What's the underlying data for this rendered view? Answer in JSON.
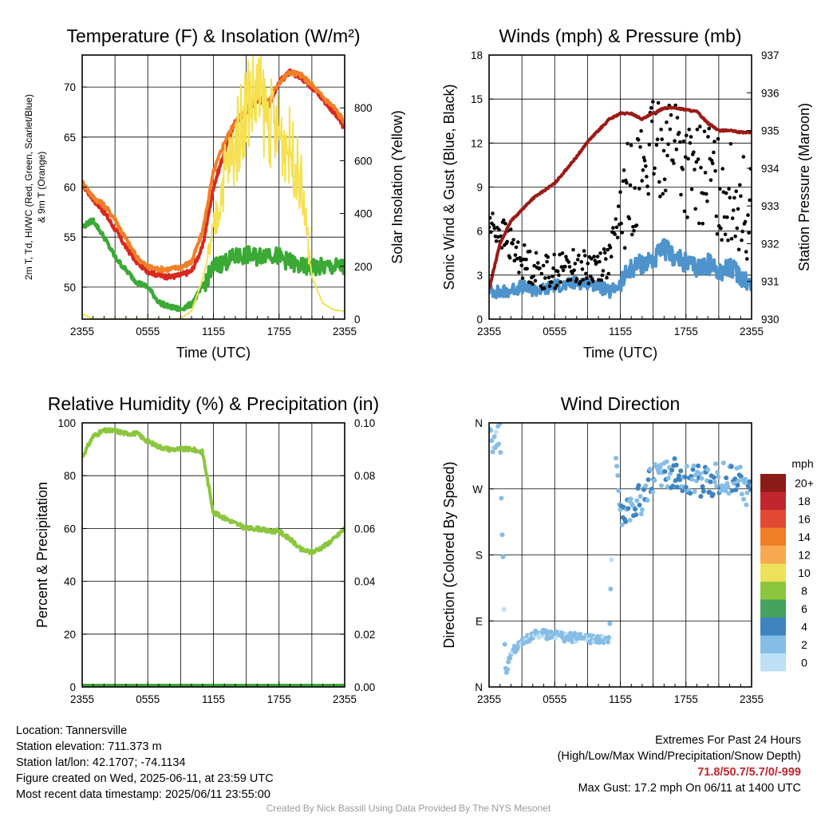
{
  "chart_data": [
    {
      "type": "line",
      "title": "Temperature (F) & Insolation (W/m²)",
      "xlabel": "Time (UTC)",
      "ylabel": "2m T, Td, HI/WC (Red, Green, Scarlet/Blue) & 9m T (Orange)",
      "ylabel2": "Solar Insolation (Yellow)",
      "x_ticks": [
        "2355",
        "0555",
        "1155",
        "1755",
        "2355"
      ],
      "y_ticks": [
        50,
        55,
        60,
        65,
        70
      ],
      "ylim": [
        46.8,
        73.2
      ],
      "y2_ticks": [
        0,
        200,
        400,
        600,
        800
      ],
      "y2lim": [
        0,
        1000
      ],
      "x_hours": [
        0,
        1,
        2,
        3,
        4,
        5,
        6,
        7,
        8,
        9,
        10,
        11,
        12,
        13,
        14,
        15,
        16,
        17,
        18,
        19,
        20,
        21,
        22,
        23,
        24
      ],
      "series": [
        {
          "name": "2m T",
          "axis": "left",
          "color": "#d9281e",
          "values": [
            60.3,
            58.8,
            57.5,
            55.8,
            54.0,
            52.5,
            51.6,
            51.2,
            51.0,
            51.2,
            51.6,
            54.0,
            60.0,
            63.5,
            66.5,
            67.5,
            68.8,
            68.0,
            70.5,
            71.5,
            71.0,
            70.0,
            68.8,
            67.5,
            65.9
          ]
        },
        {
          "name": "9m T",
          "axis": "left",
          "color": "#f07f27",
          "values": [
            60.5,
            59.0,
            58.2,
            56.8,
            54.8,
            53.0,
            52.0,
            51.8,
            51.8,
            52.0,
            52.5,
            55.5,
            61.5,
            64.5,
            66.5,
            67.8,
            69.0,
            68.5,
            70.5,
            71.5,
            71.2,
            70.2,
            69.0,
            68.0,
            66.5
          ]
        },
        {
          "name": "Td",
          "axis": "left",
          "color": "#3aa935",
          "values": [
            56.0,
            56.7,
            55.0,
            53.0,
            51.7,
            50.5,
            50.0,
            48.5,
            48.0,
            47.8,
            48.3,
            50.0,
            52.0,
            52.5,
            53.0,
            53.2,
            53.0,
            53.5,
            53.0,
            52.5,
            52.0,
            52.0,
            52.0,
            52.0,
            52.0
          ]
        },
        {
          "name": "Solar Insolation",
          "axis": "right",
          "color": "#f5e051",
          "values": [
            20,
            0,
            0,
            0,
            0,
            0,
            0,
            0,
            0,
            2,
            30,
            150,
            320,
            550,
            650,
            830,
            850,
            760,
            700,
            650,
            520,
            160,
            60,
            35,
            30
          ]
        }
      ]
    },
    {
      "type": "line",
      "title": "Winds (mph) & Pressure (mb)",
      "xlabel": "Time (UTC)",
      "ylabel": "Sonic Wind & Gust (Blue, Black)",
      "ylabel2": "Station Pressure (Maroon)",
      "x_ticks": [
        "2355",
        "0555",
        "1155",
        "1755",
        "2355"
      ],
      "y_ticks": [
        0,
        3,
        6,
        9,
        12,
        15,
        18
      ],
      "ylim": [
        0,
        18
      ],
      "y2_ticks": [
        930,
        931,
        932,
        933,
        934,
        935,
        936,
        937
      ],
      "y2lim": [
        930,
        937
      ],
      "x_hours": [
        0,
        1,
        2,
        3,
        4,
        5,
        6,
        7,
        8,
        9,
        10,
        11,
        12,
        13,
        14,
        15,
        16,
        17,
        18,
        19,
        20,
        21,
        22,
        23,
        24
      ],
      "series": [
        {
          "name": "Sonic Wind",
          "axis": "left",
          "color": "#4e93cc",
          "values": [
            2.0,
            1.8,
            2.0,
            2.2,
            2.0,
            2.0,
            2.3,
            2.3,
            2.5,
            2.5,
            2.3,
            1.8,
            2.4,
            3.5,
            3.8,
            4.0,
            4.8,
            4.2,
            3.8,
            3.5,
            3.8,
            3.3,
            3.5,
            3.0,
            2.3
          ]
        },
        {
          "name": "Gust",
          "axis": "left",
          "color": "#000000",
          "style": "points",
          "values": [
            6.5,
            6.0,
            5.0,
            4.0,
            3.5,
            3.2,
            3.3,
            3.5,
            3.6,
            3.4,
            3.8,
            4.0,
            7.5,
            9.0,
            10.5,
            11.5,
            11.8,
            12.5,
            10.0,
            9.5,
            10.0,
            9.0,
            8.5,
            8.0,
            7.0
          ]
        },
        {
          "name": "Station Pressure",
          "axis": "right",
          "color": "#9b1a17",
          "values": [
            930.8,
            932.0,
            932.6,
            932.9,
            933.2,
            933.4,
            933.6,
            933.95,
            934.3,
            934.7,
            935.0,
            935.3,
            935.45,
            935.45,
            935.3,
            935.45,
            935.6,
            935.6,
            935.55,
            935.5,
            935.2,
            935.0,
            935.0,
            934.95,
            934.95
          ]
        }
      ]
    },
    {
      "type": "line",
      "title": "Relative Humidity (%) & Precipitation (in)",
      "xlabel": "",
      "ylabel": "Percent & Precipitation",
      "x_ticks": [
        "2355",
        "0555",
        "1155",
        "1755",
        "2355"
      ],
      "y_ticks": [
        0,
        20,
        40,
        60,
        80,
        100
      ],
      "ylim": [
        0,
        100
      ],
      "y2_ticks": [
        "0.00",
        "0.02",
        "0.04",
        "0.06",
        "0.08",
        "0.10"
      ],
      "y2lim": [
        0,
        0.1
      ],
      "x_hours": [
        0,
        1,
        2,
        3,
        4,
        5,
        6,
        7,
        8,
        9,
        10,
        11,
        12,
        13,
        14,
        15,
        16,
        17,
        18,
        19,
        20,
        21,
        22,
        23,
        24
      ],
      "series": [
        {
          "name": "Relative Humidity",
          "axis": "left",
          "color": "#8cc63e",
          "values": [
            87,
            95,
            97,
            97,
            96,
            96,
            93,
            91,
            90,
            90,
            90,
            89,
            66,
            64,
            62,
            60,
            60,
            59,
            59,
            56,
            52,
            51,
            53,
            56,
            60
          ]
        },
        {
          "name": "Precipitation",
          "axis": "right",
          "color": "#3aa935",
          "values": [
            0,
            0,
            0,
            0,
            0,
            0,
            0,
            0,
            0,
            0,
            0,
            0,
            0,
            0,
            0,
            0,
            0,
            0,
            0,
            0,
            0,
            0,
            0,
            0,
            0
          ]
        }
      ]
    },
    {
      "type": "scatter",
      "title": "Wind Direction",
      "xlabel": "",
      "ylabel": "Direction (Colored By Speed)",
      "x_ticks": [
        "2355",
        "0555",
        "1155",
        "1755",
        "2355"
      ],
      "y_ticks": [
        "N",
        "E",
        "S",
        "W",
        "N"
      ],
      "ylim": [
        0,
        360
      ],
      "legend": {
        "title": "mph",
        "placement": "right",
        "entries": [
          "20+",
          "18",
          "16",
          "14",
          "12",
          "10",
          "8",
          "6",
          "4",
          "2",
          "0"
        ],
        "colors": [
          "#8c1b18",
          "#c0262d",
          "#e14932",
          "#f07f27",
          "#f8a950",
          "#ede159",
          "#8cc63e",
          "#46a35f",
          "#3e84c0",
          "#85bde6",
          "#bde0f5"
        ]
      },
      "x_hours": [
        0,
        0.5,
        1,
        1.5,
        2,
        3,
        4,
        5,
        6,
        7,
        8,
        9,
        10,
        11,
        11.5,
        12,
        12.5,
        13,
        14,
        15,
        16,
        17,
        18,
        19,
        20,
        21,
        22,
        23,
        24
      ],
      "values": [
        340,
        330,
        350,
        20,
        45,
        60,
        70,
        72,
        70,
        68,
        67,
        66,
        65,
        64,
        330,
        240,
        245,
        250,
        255,
        285,
        295,
        290,
        285,
        280,
        278,
        285,
        285,
        280,
        260
      ]
    }
  ],
  "info_left": {
    "location": "Location: Tannersville",
    "elevation": "Station elevation: 711.373 m",
    "latlon": "Station lat/lon: 42.1707; -74.1134",
    "created": "Figure created on Wed, 2025-06-11, at 23:59 UTC",
    "recent": "Most recent data timestamp: 2025/06/11 23:55:00"
  },
  "info_right": {
    "heading": "Extremes For Past 24 Hours",
    "subheading": "(High/Low/Max Wind/Precipitation/Snow Depth)",
    "values": "71.8/50.7/5.7/0/-999",
    "gust": "Max Gust: 17.2 mph On 06/11 at 1400 UTC"
  },
  "credit": "Created By Nick Bassill Using Data Provided By The NYS Mesonet"
}
